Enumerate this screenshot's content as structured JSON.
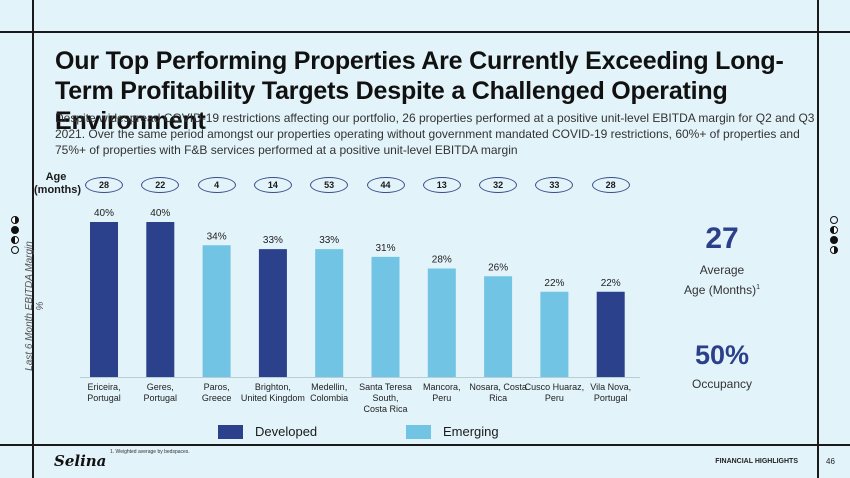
{
  "header": {
    "title": "Our Top Performing Properties Are Currently Exceeding Long-Term Profitability Targets Despite a Challenged Operating Environment",
    "subtitle": "Despite widespread COVID-19 restrictions affecting our portfolio, 26 properties performed at a positive unit-level EBITDA margin for Q2 and Q3 2021. Over the same period amongst our properties operating without government mandated COVID-19 restrictions, 60%+ of properties and 75%+ of properties with F&B services performed at a positive unit-level EBITDA margin"
  },
  "age_row": {
    "label_line1": "Age",
    "label_line2": "(months)",
    "values": [
      "28",
      "22",
      "4",
      "14",
      "53",
      "44",
      "13",
      "32",
      "33",
      "28"
    ]
  },
  "chart_data": {
    "type": "bar",
    "title": "",
    "xlabel": "",
    "ylabel": "Last 6 Month EBITDA Margin %",
    "ylim": [
      0,
      40
    ],
    "grid": false,
    "legend_position": "bottom",
    "categories": [
      [
        "Ericeira,",
        "Portugal"
      ],
      [
        "Geres,",
        "Portugal"
      ],
      [
        "Paros,",
        "Greece"
      ],
      [
        "Brighton,",
        "United Kingdom"
      ],
      [
        "Medellin,",
        "Colombia"
      ],
      [
        "Santa Teresa",
        "South,",
        "Costa Rica"
      ],
      [
        "Mancora,",
        "Peru"
      ],
      [
        "Nosara, Costa",
        "Rica"
      ],
      [
        "Cusco Huaraz,",
        "Peru"
      ],
      [
        "Vila Nova,",
        "Portugal"
      ]
    ],
    "values": [
      40,
      40,
      34,
      33,
      33,
      31,
      28,
      26,
      22,
      22
    ],
    "labels": [
      "40%",
      "40%",
      "34%",
      "33%",
      "33%",
      "31%",
      "28%",
      "26%",
      "22%",
      "22%"
    ],
    "group": [
      "Developed",
      "Developed",
      "Emerging",
      "Developed",
      "Emerging",
      "Emerging",
      "Emerging",
      "Emerging",
      "Emerging",
      "Developed"
    ],
    "legend": [
      {
        "name": "Developed",
        "color": "#2b418c"
      },
      {
        "name": "Emerging",
        "color": "#72c4e4"
      }
    ]
  },
  "stats": {
    "age_value": "27",
    "age_label_line1": "Average",
    "age_label_line2": "Age (Months)",
    "age_footnote_ref": "1",
    "occupancy_value": "50%",
    "occupancy_label": "Occupancy"
  },
  "footer": {
    "footnote": "1. Weighted average by bedspaces.",
    "logo": "Selina",
    "section": "FINANCIAL HIGHLIGHTS",
    "page_number": "46"
  }
}
